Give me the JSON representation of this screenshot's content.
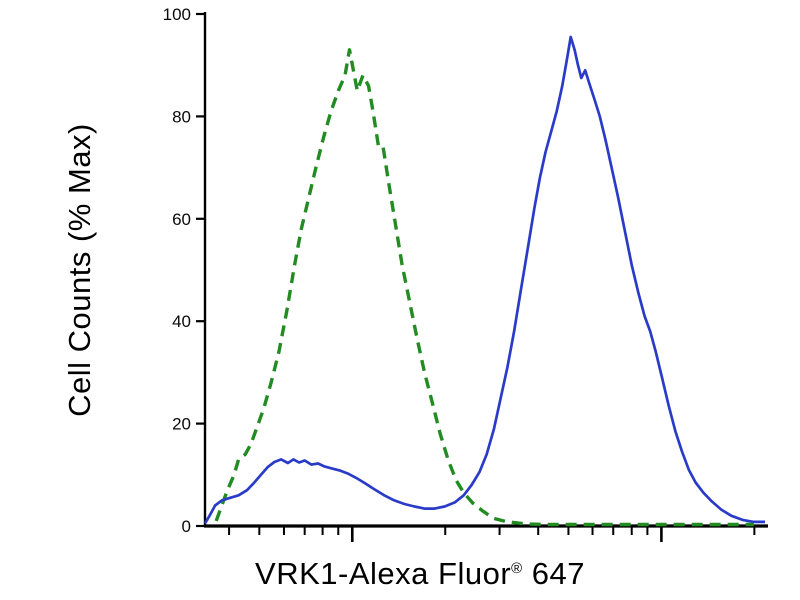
{
  "figure": {
    "background": "#ffffff",
    "description": "Flow cytometry overlay histogram with a green dashed curve and a blue solid curve"
  },
  "chart_data": {
    "type": "line",
    "chart_kind": "flow-cytometry-histogram",
    "title": "",
    "xlabel": "VRK1-Alexa Fluor® 647",
    "xlabel_parts": {
      "main": "VRK1-Alexa Fluor",
      "sup": "®",
      "suffix": " 647"
    },
    "ylabel": "Cell Counts (% Max)",
    "ylim": [
      0,
      100
    ],
    "grid": false,
    "legend": "none",
    "colors": {
      "green_dashed": "#228B22",
      "blue_solid": "#2a3bc8",
      "axis": "#000000"
    },
    "y_axis": {
      "ticks": [
        {
          "value": 0,
          "label": "0"
        },
        {
          "value": 20,
          "label": "20"
        },
        {
          "value": 40,
          "label": "40"
        },
        {
          "value": 60,
          "label": "60"
        },
        {
          "value": 80,
          "label": "80"
        },
        {
          "value": 100,
          "label": "100"
        }
      ]
    },
    "x_axis": {
      "scale": "log (unlabeled)",
      "range_fraction": [
        0,
        1
      ],
      "ticks": [
        {
          "pos": 0.043,
          "major": false
        },
        {
          "pos": 0.097,
          "major": false
        },
        {
          "pos": 0.141,
          "major": false
        },
        {
          "pos": 0.178,
          "major": false
        },
        {
          "pos": 0.21,
          "major": false
        },
        {
          "pos": 0.238,
          "major": false
        },
        {
          "pos": 0.263,
          "major": true
        },
        {
          "pos": 0.429,
          "major": false
        },
        {
          "pos": 0.526,
          "major": false
        },
        {
          "pos": 0.595,
          "major": false
        },
        {
          "pos": 0.649,
          "major": false
        },
        {
          "pos": 0.692,
          "major": false
        },
        {
          "pos": 0.729,
          "major": false
        },
        {
          "pos": 0.762,
          "major": false
        },
        {
          "pos": 0.79,
          "major": false
        },
        {
          "pos": 0.815,
          "major": true
        },
        {
          "pos": 0.981,
          "major": false
        }
      ]
    },
    "series": [
      {
        "name": "green-dashed",
        "style": "dashed",
        "color": "#228B22",
        "width": 3.4,
        "points": [
          [
            0.02,
            1
          ],
          [
            0.03,
            4
          ],
          [
            0.04,
            7
          ],
          [
            0.052,
            10
          ],
          [
            0.06,
            13
          ],
          [
            0.072,
            14
          ],
          [
            0.082,
            16
          ],
          [
            0.092,
            19
          ],
          [
            0.105,
            23
          ],
          [
            0.118,
            28
          ],
          [
            0.132,
            34
          ],
          [
            0.146,
            42
          ],
          [
            0.16,
            51
          ],
          [
            0.172,
            58
          ],
          [
            0.185,
            64
          ],
          [
            0.198,
            70
          ],
          [
            0.212,
            76
          ],
          [
            0.225,
            81
          ],
          [
            0.238,
            85
          ],
          [
            0.25,
            88
          ],
          [
            0.258,
            93
          ],
          [
            0.265,
            89
          ],
          [
            0.272,
            85
          ],
          [
            0.282,
            88
          ],
          [
            0.292,
            86
          ],
          [
            0.3,
            81
          ],
          [
            0.31,
            74
          ],
          [
            0.318,
            74
          ],
          [
            0.328,
            67
          ],
          [
            0.34,
            59
          ],
          [
            0.352,
            51
          ],
          [
            0.365,
            44
          ],
          [
            0.378,
            37
          ],
          [
            0.392,
            30
          ],
          [
            0.406,
            24
          ],
          [
            0.42,
            18
          ],
          [
            0.434,
            13
          ],
          [
            0.448,
            9
          ],
          [
            0.462,
            6.5
          ],
          [
            0.478,
            4.5
          ],
          [
            0.495,
            3
          ],
          [
            0.515,
            1.5
          ],
          [
            0.54,
            0.8
          ],
          [
            0.575,
            0.4
          ],
          [
            0.62,
            0.3
          ],
          [
            0.68,
            0.3
          ],
          [
            0.74,
            0.3
          ],
          [
            0.82,
            0.3
          ],
          [
            0.9,
            0.3
          ],
          [
            0.98,
            0.3
          ]
        ]
      },
      {
        "name": "blue-solid",
        "style": "solid",
        "color": "#2a3bc8",
        "width": 2.7,
        "points": [
          [
            0.0,
            0.5
          ],
          [
            0.008,
            2
          ],
          [
            0.018,
            4
          ],
          [
            0.03,
            5
          ],
          [
            0.045,
            5.5
          ],
          [
            0.06,
            6
          ],
          [
            0.075,
            7
          ],
          [
            0.088,
            8.5
          ],
          [
            0.1,
            10
          ],
          [
            0.112,
            11.5
          ],
          [
            0.124,
            12.5
          ],
          [
            0.136,
            13
          ],
          [
            0.148,
            12.3
          ],
          [
            0.158,
            13
          ],
          [
            0.168,
            12.4
          ],
          [
            0.178,
            12.8
          ],
          [
            0.19,
            12
          ],
          [
            0.202,
            12.2
          ],
          [
            0.214,
            11.6
          ],
          [
            0.228,
            11.2
          ],
          [
            0.242,
            10.8
          ],
          [
            0.256,
            10.2
          ],
          [
            0.27,
            9.4
          ],
          [
            0.285,
            8.4
          ],
          [
            0.302,
            7.2
          ],
          [
            0.32,
            6
          ],
          [
            0.338,
            5
          ],
          [
            0.356,
            4.3
          ],
          [
            0.374,
            3.8
          ],
          [
            0.392,
            3.4
          ],
          [
            0.41,
            3.4
          ],
          [
            0.428,
            3.8
          ],
          [
            0.446,
            4.6
          ],
          [
            0.462,
            6
          ],
          [
            0.476,
            8
          ],
          [
            0.49,
            10.5
          ],
          [
            0.503,
            14
          ],
          [
            0.516,
            19
          ],
          [
            0.528,
            25
          ],
          [
            0.54,
            31
          ],
          [
            0.552,
            38
          ],
          [
            0.564,
            46
          ],
          [
            0.576,
            54
          ],
          [
            0.588,
            62
          ],
          [
            0.598,
            68
          ],
          [
            0.608,
            73
          ],
          [
            0.618,
            77
          ],
          [
            0.628,
            81
          ],
          [
            0.638,
            86
          ],
          [
            0.646,
            91
          ],
          [
            0.653,
            95.5
          ],
          [
            0.66,
            93
          ],
          [
            0.666,
            90
          ],
          [
            0.672,
            87.5
          ],
          [
            0.679,
            89
          ],
          [
            0.686,
            86.5
          ],
          [
            0.695,
            83.5
          ],
          [
            0.705,
            80
          ],
          [
            0.715,
            75.5
          ],
          [
            0.726,
            70
          ],
          [
            0.738,
            64
          ],
          [
            0.75,
            57.5
          ],
          [
            0.762,
            51
          ],
          [
            0.774,
            45.5
          ],
          [
            0.785,
            41
          ],
          [
            0.795,
            38
          ],
          [
            0.805,
            34
          ],
          [
            0.816,
            29
          ],
          [
            0.828,
            23.5
          ],
          [
            0.84,
            18.5
          ],
          [
            0.852,
            14.5
          ],
          [
            0.864,
            11
          ],
          [
            0.876,
            8.5
          ],
          [
            0.89,
            6.5
          ],
          [
            0.905,
            4.8
          ],
          [
            0.922,
            3.2
          ],
          [
            0.94,
            2
          ],
          [
            0.96,
            1.2
          ],
          [
            0.98,
            0.8
          ],
          [
            1.0,
            0.8
          ]
        ]
      }
    ]
  }
}
